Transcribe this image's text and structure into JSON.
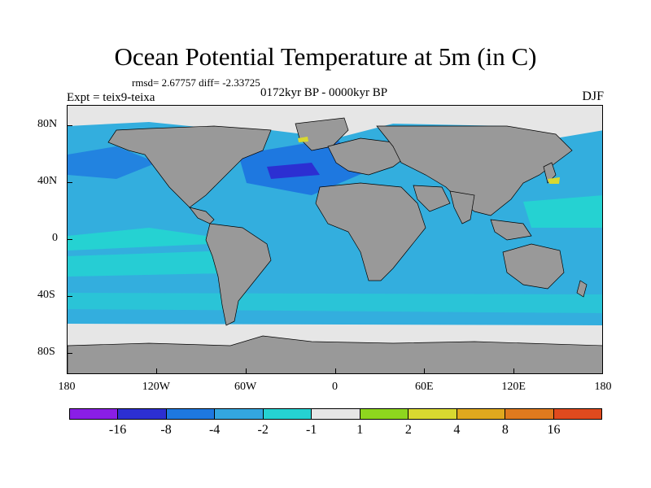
{
  "title": "Ocean Potential Temperature at 5m (in C)",
  "stats": "rmsd= 2.67757  diff= -2.33725",
  "expt": "Expt = teix9-teixa",
  "period": "0172kyr BP - 0000kyr BP",
  "season": "DJF",
  "axes": {
    "y_labels": [
      {
        "label": "80N",
        "lat": 80
      },
      {
        "label": "40N",
        "lat": 40
      },
      {
        "label": "0",
        "lat": 0
      },
      {
        "label": "40S",
        "lat": -40
      },
      {
        "label": "80S",
        "lat": -80
      }
    ],
    "x_labels": [
      {
        "label": "180",
        "lon": -180
      },
      {
        "label": "120W",
        "lon": -120
      },
      {
        "label": "60W",
        "lon": -60
      },
      {
        "label": "0",
        "lon": 0
      },
      {
        "label": "60E",
        "lon": 60
      },
      {
        "label": "120E",
        "lon": 120
      },
      {
        "label": "180",
        "lon": 180
      }
    ]
  },
  "colorbar": {
    "colors": [
      "#8a1ee6",
      "#2c2fd2",
      "#1e78e0",
      "#33a6e0",
      "#25d2d2",
      "#e6e6e6",
      "#8ed61e",
      "#d8d830",
      "#e0a81e",
      "#e07a1e",
      "#e04a1e"
    ],
    "labels": [
      "-16",
      "-8",
      "-4",
      "-2",
      "-1",
      "1",
      "2",
      "4",
      "8",
      "16"
    ]
  },
  "colors": {
    "land": "#999999",
    "ice": "#e6e6e6",
    "ocean_default": "#33aede"
  }
}
